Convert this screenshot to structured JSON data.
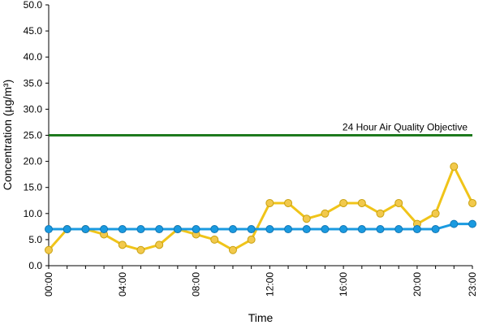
{
  "chart_data": {
    "type": "line",
    "title": "",
    "xlabel": "Time",
    "ylabel": "Concentration (µg/m³)",
    "ylim": [
      0,
      50
    ],
    "ytick_step": 5,
    "ytick_labels": [
      "0.0",
      "5.0",
      "10.0",
      "15.0",
      "20.0",
      "25.0",
      "30.0",
      "35.0",
      "40.0",
      "45.0",
      "50.0"
    ],
    "x_hours": [
      0,
      1,
      2,
      3,
      4,
      5,
      6,
      7,
      8,
      9,
      10,
      11,
      12,
      13,
      14,
      15,
      16,
      17,
      18,
      19,
      20,
      21,
      22,
      23
    ],
    "xtick_labels": [
      {
        "hour": 0,
        "label": "00:00"
      },
      {
        "hour": 4,
        "label": "04:00"
      },
      {
        "hour": 8,
        "label": "08:00"
      },
      {
        "hour": 12,
        "label": "12:00"
      },
      {
        "hour": 16,
        "label": "16:00"
      },
      {
        "hour": 20,
        "label": "20:00"
      },
      {
        "hour": 23,
        "label": "23:00"
      }
    ],
    "grid": false,
    "legend": "none",
    "series": [
      {
        "color": "#f0c419",
        "marker_fill": "#f2c94c",
        "values": [
          3,
          7,
          7,
          6,
          4,
          3,
          4,
          7,
          6,
          5,
          3,
          5,
          12,
          12,
          9,
          10,
          12,
          12,
          10,
          12,
          8,
          10,
          19,
          12
        ]
      },
      {
        "color": "#1a9ae0",
        "marker_fill": "#1a9ae0",
        "values": [
          7,
          7,
          7,
          7,
          7,
          7,
          7,
          7,
          7,
          7,
          7,
          7,
          7,
          7,
          7,
          7,
          7,
          7,
          7,
          7,
          7,
          7,
          8,
          8
        ]
      }
    ],
    "reference_line": {
      "label": "24 Hour Air Quality Objective",
      "value": 25,
      "color": "#1e7a1e"
    }
  }
}
